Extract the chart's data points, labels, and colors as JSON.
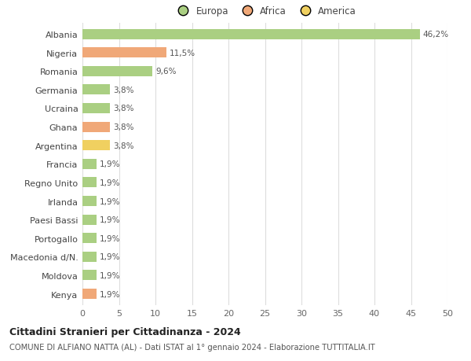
{
  "countries": [
    "Albania",
    "Nigeria",
    "Romania",
    "Germania",
    "Ucraina",
    "Ghana",
    "Argentina",
    "Francia",
    "Regno Unito",
    "Irlanda",
    "Paesi Bassi",
    "Portogallo",
    "Macedonia d/N.",
    "Moldova",
    "Kenya"
  ],
  "values": [
    46.2,
    11.5,
    9.6,
    3.8,
    3.8,
    3.8,
    3.8,
    1.9,
    1.9,
    1.9,
    1.9,
    1.9,
    1.9,
    1.9,
    1.9
  ],
  "continents": [
    "Europa",
    "Africa",
    "Europa",
    "Europa",
    "Europa",
    "Africa",
    "America",
    "Europa",
    "Europa",
    "Europa",
    "Europa",
    "Europa",
    "Europa",
    "Europa",
    "Africa"
  ],
  "labels": [
    "46,2%",
    "11,5%",
    "9,6%",
    "3,8%",
    "3,8%",
    "3,8%",
    "3,8%",
    "1,9%",
    "1,9%",
    "1,9%",
    "1,9%",
    "1,9%",
    "1,9%",
    "1,9%",
    "1,9%"
  ],
  "colors": {
    "Europa": "#aacf82",
    "Africa": "#f0a878",
    "America": "#f0d060"
  },
  "legend_entries": [
    "Europa",
    "Africa",
    "America"
  ],
  "xlim": [
    0,
    50
  ],
  "xticks": [
    0,
    5,
    10,
    15,
    20,
    25,
    30,
    35,
    40,
    45,
    50
  ],
  "title1": "Cittadini Stranieri per Cittadinanza - 2024",
  "title2": "COMUNE DI ALFIANO NATTA (AL) - Dati ISTAT al 1° gennaio 2024 - Elaborazione TUTTITALIA.IT",
  "background_color": "#ffffff",
  "grid_color": "#dddddd",
  "bar_height": 0.55,
  "label_fontsize": 7.5,
  "ytick_fontsize": 8.0,
  "xtick_fontsize": 8.0,
  "legend_fontsize": 8.5,
  "title1_fontsize": 9.0,
  "title2_fontsize": 7.2
}
